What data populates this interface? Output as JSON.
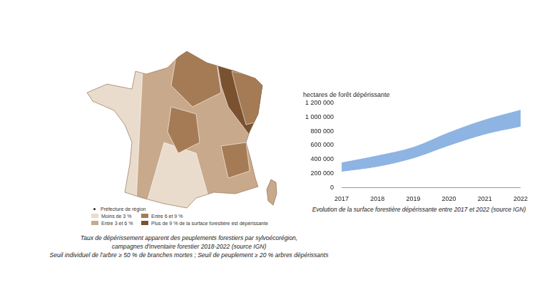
{
  "chart_data": {
    "type": "area",
    "title": "hectares de forêt dépérissante",
    "caption": "Evolution de la surface forestière dépérissante entre 2017 et 2022 (source IGN)",
    "categories": [
      "2017",
      "2018",
      "2019",
      "2020",
      "2021",
      "2022"
    ],
    "series": [
      {
        "values": [
          230000,
          300000,
          420000,
          600000,
          760000,
          870000
        ]
      },
      {
        "values": [
          350000,
          450000,
          570000,
          780000,
          960000,
          1100000
        ]
      }
    ],
    "color": "#8db4e2",
    "ylim": [
      0,
      1200000
    ],
    "yticks": [
      {
        "value": 0,
        "label": "0"
      },
      {
        "value": 200000,
        "label": "200 000"
      },
      {
        "value": 400000,
        "label": "400 000"
      },
      {
        "value": 600000,
        "label": "600 000"
      },
      {
        "value": 800000,
        "label": "800 000"
      },
      {
        "value": 1000000,
        "label": "1 000 000"
      },
      {
        "value": 1200000,
        "label": "1 200 000"
      }
    ],
    "grid": false,
    "legend": "none"
  },
  "map": {
    "legend": [
      {
        "label": "Préfecture de région",
        "marker": "dot"
      },
      {
        "label": "Moins de 3 %",
        "color": "#eadccd"
      },
      {
        "label": "Entre 3 et 6 %",
        "color": "#c9a98b"
      },
      {
        "label": "Entre 6 et 9 %",
        "color": "#a57b55"
      },
      {
        "label": "Plus de 9 % de la surface forestière est dépérissante",
        "color": "#7a5230"
      }
    ],
    "caption": [
      "Taux de dépérissement apparent des peuplements forestiers par sylvoécorégion,",
      "campagnes d'inventaire forestier 2018-2022 (source IGN)",
      "Seuil individuel de l'arbre ≥ 50 % de branches mortes ; Seuil de peuplement ≥ 20 % arbres dépérissants"
    ]
  }
}
